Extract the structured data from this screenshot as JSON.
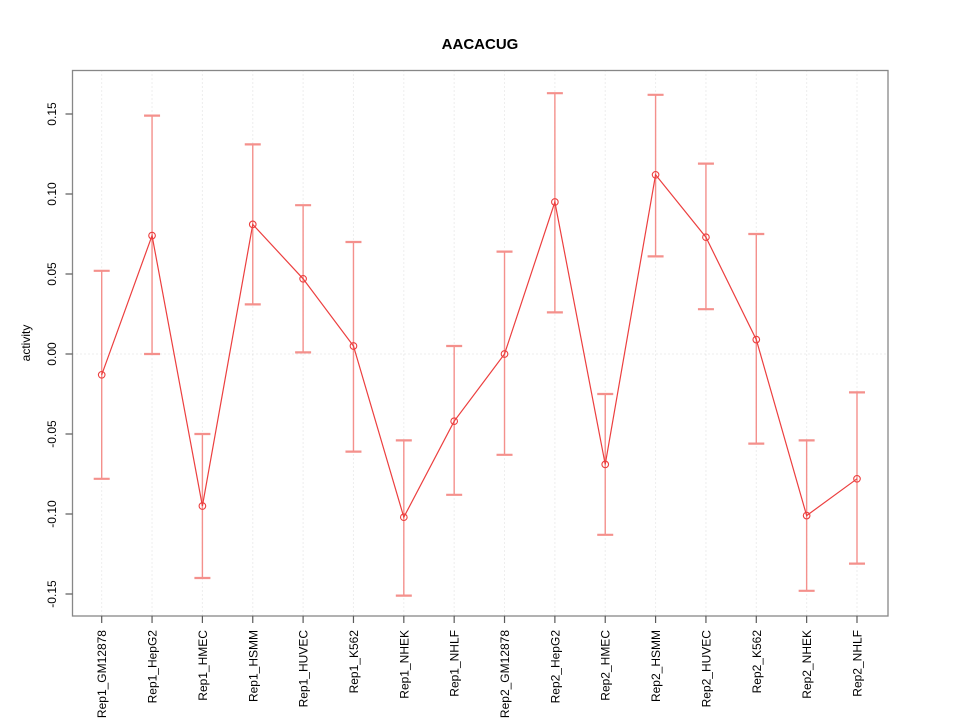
{
  "chart_data": {
    "type": "line",
    "title": "AACACUG",
    "xlabel": "",
    "ylabel": "activity",
    "ylim": [
      -0.164,
      0.177
    ],
    "y_ticks": [
      0.15,
      0.1,
      0.05,
      0.0,
      -0.05,
      -0.1,
      -0.15
    ],
    "grid": "dotted vertical gridline at each category; dotted horizontal line at y=0",
    "legend_position": "none",
    "point_style": "open-circle",
    "error_bars": true,
    "categories": [
      "Rep1_GM12878",
      "Rep1_HepG2",
      "Rep1_HMEC",
      "Rep1_HSMM",
      "Rep1_HUVEC",
      "Rep1_K562",
      "Rep1_NHEK",
      "Rep1_NHLF",
      "Rep2_GM12878",
      "Rep2_HepG2",
      "Rep2_HMEC",
      "Rep2_HSMM",
      "Rep2_HUVEC",
      "Rep2_K562",
      "Rep2_NHEK",
      "Rep2_NHLF"
    ],
    "series": [
      {
        "name": "activity",
        "values": [
          -0.013,
          0.074,
          -0.095,
          0.081,
          0.047,
          0.005,
          -0.102,
          -0.042,
          0.0,
          0.095,
          -0.069,
          0.112,
          0.073,
          0.009,
          -0.101,
          -0.078
        ],
        "lower": [
          -0.078,
          0.0,
          -0.14,
          0.031,
          0.001,
          -0.061,
          -0.151,
          -0.088,
          -0.063,
          0.026,
          -0.113,
          0.061,
          0.028,
          -0.056,
          -0.148,
          -0.131
        ],
        "upper": [
          0.052,
          0.149,
          -0.05,
          0.131,
          0.093,
          0.07,
          -0.054,
          0.005,
          0.064,
          0.163,
          -0.025,
          0.162,
          0.119,
          0.075,
          -0.054,
          -0.024
        ]
      }
    ],
    "colors": {
      "line": "#ec3f3f",
      "point": "#ec3f3f",
      "error_bar": "#f4908c",
      "grid": "#dcdcdc",
      "box": "#878787",
      "tick": "#5a5a5a",
      "text": "#000000"
    }
  }
}
